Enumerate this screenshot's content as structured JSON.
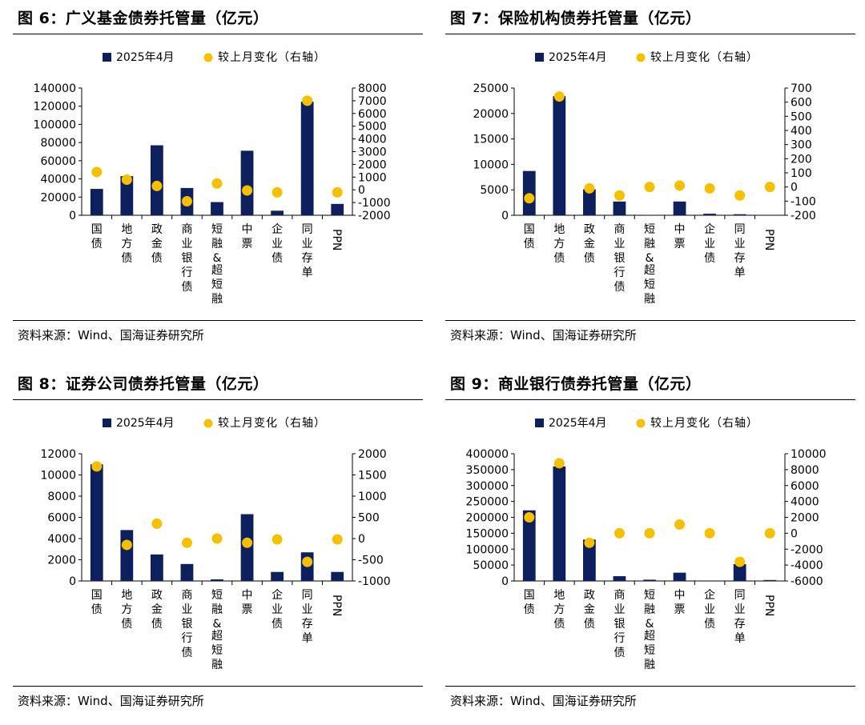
{
  "colors": {
    "bar": "#0d1f5c",
    "dot": "#f5c000",
    "axis": "#000000"
  },
  "sources": "资料来源：Wind、国海证券研究所",
  "chart_data": [
    {
      "type": "bar",
      "title": "图 6：广义基金债券托管量（亿元）",
      "legend": {
        "bar": "2025年4月",
        "dot": "较上月变化（右轴）",
        "placement": "top"
      },
      "categories": [
        "国债",
        "地方债",
        "政金债",
        "商业银行债",
        "短融&超短融",
        "中票",
        "企业债",
        "同业存单",
        "PPN"
      ],
      "series": [
        {
          "name": "2025年4月",
          "kind": "bar",
          "axis": "left",
          "values": [
            29000,
            43000,
            77000,
            30000,
            14500,
            71000,
            5000,
            125000,
            12500
          ]
        },
        {
          "name": "较上月变化（右轴）",
          "kind": "scatter",
          "axis": "right",
          "values": [
            1400,
            800,
            300,
            -900,
            500,
            -50,
            -200,
            7000,
            -200
          ]
        }
      ],
      "left_axis": {
        "min": 0,
        "max": 140000,
        "step": 20000
      },
      "right_axis": {
        "min": -2000,
        "max": 8000,
        "step": 1000
      }
    },
    {
      "type": "bar",
      "title": "图 7：保险机构债券托管量（亿元）",
      "legend": {
        "bar": "2025年4月",
        "dot": "较上月变化（右轴）",
        "placement": "top"
      },
      "categories": [
        "国债",
        "地方债",
        "政金债",
        "商业银行债",
        "短融&超短融",
        "中票",
        "企业债",
        "同业存单",
        "PPN"
      ],
      "series": [
        {
          "name": "2025年4月",
          "kind": "bar",
          "axis": "left",
          "values": [
            8700,
            23400,
            5100,
            2700,
            50,
            2700,
            300,
            200,
            20
          ]
        },
        {
          "name": "较上月变化（右轴）",
          "kind": "scatter",
          "axis": "right",
          "values": [
            -80,
            640,
            -10,
            -60,
            0,
            10,
            -10,
            -60,
            0
          ]
        }
      ],
      "left_axis": {
        "min": 0,
        "max": 25000,
        "step": 5000
      },
      "right_axis": {
        "min": -200,
        "max": 700,
        "step": 100
      }
    },
    {
      "type": "bar",
      "title": "图 8：证券公司债券托管量（亿元）",
      "legend": {
        "bar": "2025年4月",
        "dot": "较上月变化（右轴）",
        "placement": "top"
      },
      "categories": [
        "国债",
        "地方债",
        "政金债",
        "商业银行债",
        "短融&超短融",
        "中票",
        "企业债",
        "同业存单",
        "PPN"
      ],
      "series": [
        {
          "name": "2025年4月",
          "kind": "bar",
          "axis": "left",
          "values": [
            11000,
            4800,
            2500,
            1600,
            150,
            6300,
            850,
            2700,
            850
          ]
        },
        {
          "name": "较上月变化（右轴）",
          "kind": "scatter",
          "axis": "right",
          "values": [
            1700,
            -150,
            350,
            -100,
            0,
            -100,
            -20,
            -550,
            -20
          ]
        }
      ],
      "left_axis": {
        "min": 0,
        "max": 12000,
        "step": 2000
      },
      "right_axis": {
        "min": -1000,
        "max": 2000,
        "step": 500
      }
    },
    {
      "type": "bar",
      "title": "图 9：商业银行债券托管量（亿元）",
      "legend": {
        "bar": "2025年4月",
        "dot": "较上月变化（右轴）",
        "placement": "top"
      },
      "categories": [
        "国债",
        "地方债",
        "政金债",
        "商业银行债",
        "短融&超短融",
        "中票",
        "企业债",
        "同业存单",
        "PPN"
      ],
      "series": [
        {
          "name": "2025年4月",
          "kind": "bar",
          "axis": "left",
          "values": [
            222000,
            360000,
            130000,
            15000,
            4000,
            26000,
            1500,
            53000,
            3000
          ]
        },
        {
          "name": "较上月变化（右轴）",
          "kind": "scatter",
          "axis": "right",
          "values": [
            2000,
            8800,
            -1200,
            0,
            0,
            1100,
            0,
            -3600,
            0
          ]
        }
      ],
      "left_axis": {
        "min": 0,
        "max": 400000,
        "step": 50000
      },
      "right_axis": {
        "min": -6000,
        "max": 10000,
        "step": 2000
      }
    }
  ]
}
